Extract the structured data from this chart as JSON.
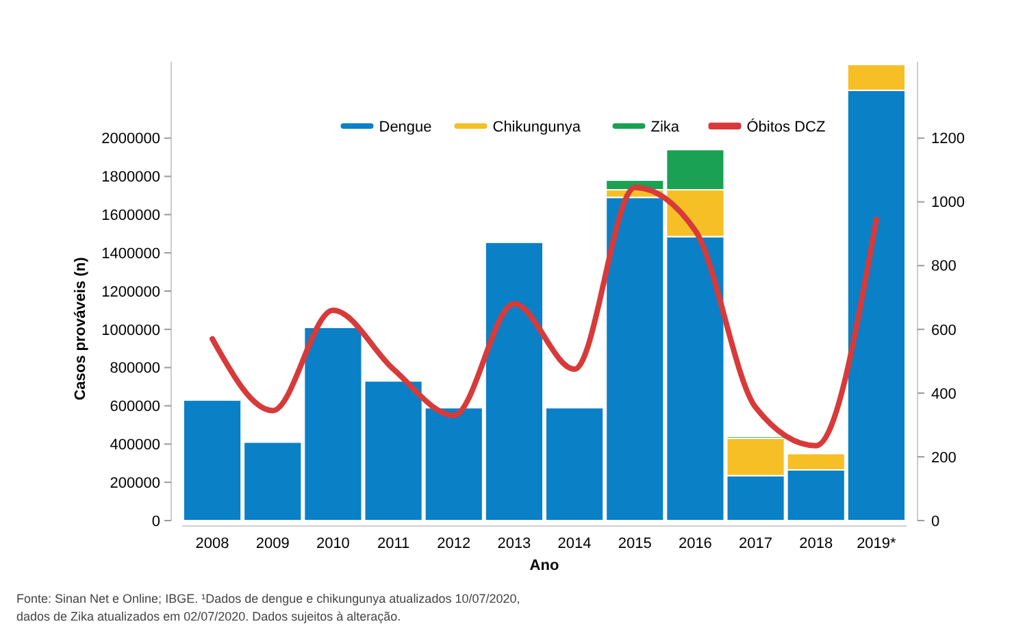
{
  "chart_data": {
    "type": "bar",
    "stacked": true,
    "xlabel": "Ano",
    "ylabel": "Casos prováveis (n)",
    "categories": [
      "2008",
      "2009",
      "2010",
      "2011",
      "2012",
      "2013",
      "2014",
      "2015",
      "2016",
      "2017",
      "2018",
      "2019*"
    ],
    "series": [
      {
        "name": "Dengue",
        "color": "#0a80c6",
        "values": [
          630000,
          410000,
          1010000,
          730000,
          590000,
          1455000,
          590000,
          1690000,
          1485000,
          235000,
          265000,
          2250000
        ]
      },
      {
        "name": "Chikungunya",
        "color": "#f6bf26",
        "values": [
          null,
          null,
          null,
          null,
          null,
          null,
          null,
          40000,
          245000,
          195000,
          85000,
          135000
        ]
      },
      {
        "name": "Zika",
        "color": "#1aa153",
        "values": [
          null,
          null,
          null,
          null,
          null,
          null,
          null,
          50000,
          210000,
          10000,
          null,
          null
        ]
      },
      {
        "name": "Óbitos DCZ",
        "color": "#d83a3a",
        "type": "line",
        "axis": "y2",
        "values": [
          570,
          345,
          660,
          475,
          330,
          680,
          475,
          1045,
          910,
          355,
          235,
          945
        ]
      }
    ],
    "ylim": [
      0,
      2400000
    ],
    "yticks": [
      0,
      200000,
      400000,
      600000,
      800000,
      1000000,
      1200000,
      1400000,
      1600000,
      1800000,
      2000000
    ],
    "y2lim": [
      0,
      1440
    ],
    "y2ticks": [
      0,
      200,
      400,
      600,
      800,
      1000,
      1200
    ],
    "legend": "top",
    "grid": false,
    "marker": "none",
    "line_style": "solid",
    "annotations": [
      "Fonte: Sinan Net e Online; IBGE. ¹Dados de dengue e chikungunya atualizados 10/07/2020, dados de Zika atualizados em 02/07/2020. Dados sujeitos à alteração."
    ]
  }
}
